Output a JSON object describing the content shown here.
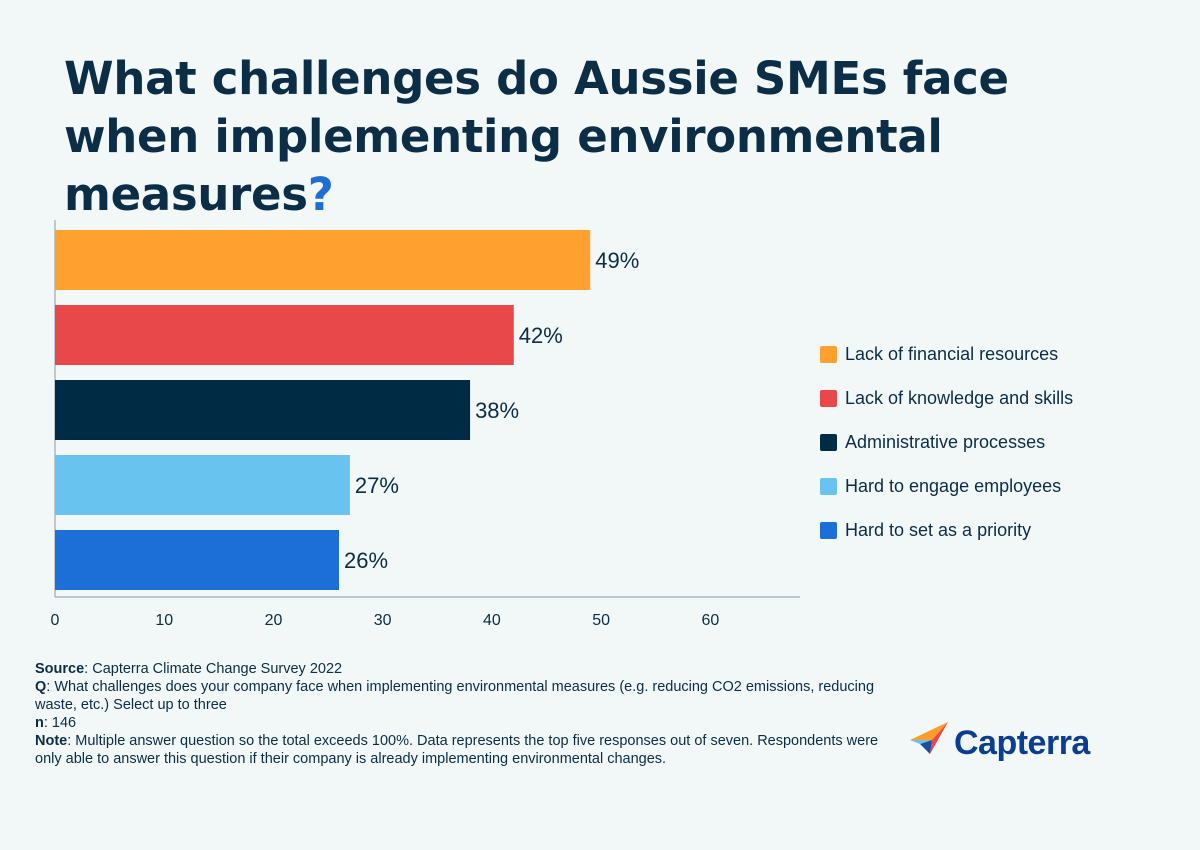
{
  "title": {
    "main": "What challenges do Aussie SMEs face when implementing environmental measures",
    "qmark": "?"
  },
  "chart_data": {
    "type": "bar",
    "orientation": "horizontal",
    "categories": [
      "Lack of financial resources",
      "Lack of knowledge and skills",
      "Administrative processes",
      "Hard to engage employees",
      "Hard to set as a priority"
    ],
    "values": [
      49,
      42,
      38,
      27,
      26
    ],
    "value_labels": [
      "49%",
      "42%",
      "38%",
      "27%",
      "26%"
    ],
    "colors": [
      "#ffa02f",
      "#e8484a",
      "#002b45",
      "#68c4ee",
      "#1b6fd6"
    ],
    "xlim": [
      0,
      68
    ],
    "xticks": [
      0,
      10,
      20,
      30,
      40,
      50,
      60
    ],
    "grid": false,
    "legend_position": "right"
  },
  "notes": {
    "source_label": "Source",
    "source_text": ": Capterra Climate Change Survey 2022",
    "q_label": "Q",
    "q_text": ": What challenges does your company face when implementing environmental measures (e.g. reducing CO2 emissions, reducing waste, etc.) Select up to three",
    "n_label": "n",
    "n_text": ": 146",
    "note_label": "Note",
    "note_text": ": Multiple answer question so the total exceeds 100%. Data represents the top five responses out of seven. Respondents were only able to answer this question if their company is already implementing environmental changes."
  },
  "logo": {
    "word": "Capterra",
    "icon": "capterra-arrow-icon"
  }
}
